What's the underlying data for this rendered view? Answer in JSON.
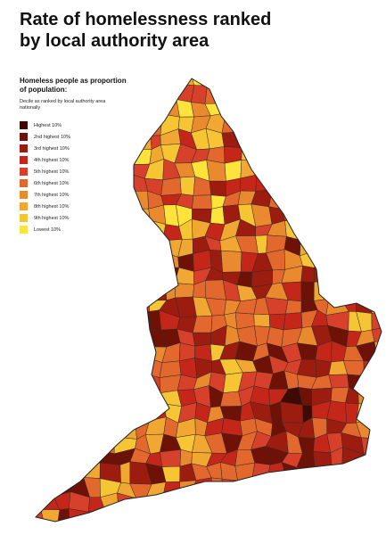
{
  "header": {
    "title": "Rate of homelessness ranked by local authority area"
  },
  "legend": {
    "heading": "Homeless people as proportion of population:",
    "subheading": "Decile as ranked by local authority area nationally",
    "items": [
      {
        "label": "Highest 10%",
        "color": "#3d0a05"
      },
      {
        "label": "2nd highest 10%",
        "color": "#6e1208"
      },
      {
        "label": "3rd highest 10%",
        "color": "#9c1c10"
      },
      {
        "label": "4th highest 10%",
        "color": "#c4261a"
      },
      {
        "label": "5th highest 10%",
        "color": "#d7402a"
      },
      {
        "label": "6th highest 10%",
        "color": "#e2682e"
      },
      {
        "label": "7th highest 10%",
        "color": "#ea8a2f"
      },
      {
        "label": "8th highest 10%",
        "color": "#f0a832"
      },
      {
        "label": "9th highest 10%",
        "color": "#f6c534"
      },
      {
        "label": "Lowest 10%",
        "color": "#fde33a"
      }
    ]
  }
}
